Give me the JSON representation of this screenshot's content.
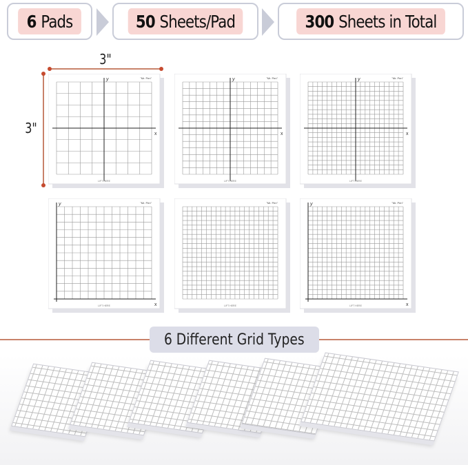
{
  "steps": [
    {
      "number": "6",
      "label": "Pads"
    },
    {
      "number": "50",
      "label": "Sheets/Pad"
    },
    {
      "number": "300",
      "label": "Sheets in Total"
    }
  ],
  "dimensions": {
    "width": "3\"",
    "height": "3\""
  },
  "pad_text": {
    "logo": "\"Mr. Pen\"",
    "lift": "LIFT HERE",
    "x_axis": "x",
    "y_axis": "y"
  },
  "pads": [
    {
      "cells": 8,
      "axes": "center"
    },
    {
      "cells": 14,
      "axes": "center"
    },
    {
      "cells": 20,
      "axes": "center"
    },
    {
      "cells": 12,
      "axes": "corner"
    },
    {
      "cells": 20,
      "axes": "none"
    },
    {
      "cells": 20,
      "axes": "corner"
    }
  ],
  "banner": "6 Different Grid Types",
  "colors": {
    "step_fill": "#f8d6d3",
    "step_border": "#c9ccd8",
    "accent_line": "#c8826a",
    "banner_fill": "#dcdde8"
  }
}
